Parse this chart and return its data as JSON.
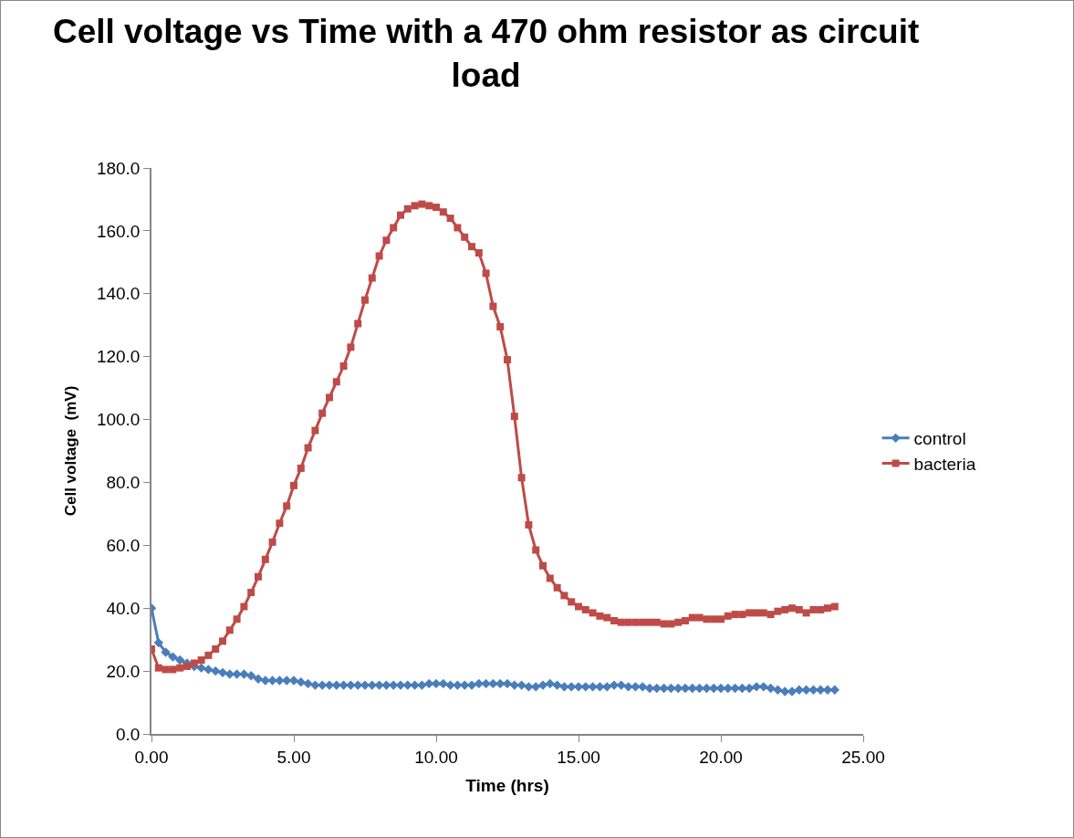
{
  "chart_data": {
    "type": "line",
    "title": "Cell voltage vs Time with a 470 ohm resistor as circuit load",
    "xlabel": "Time (hrs)",
    "ylabel": "Cell voltage  (mV)",
    "x": [
      0,
      0.25,
      0.5,
      0.75,
      1,
      1.25,
      1.5,
      1.75,
      2,
      2.25,
      2.5,
      2.75,
      3,
      3.25,
      3.5,
      3.75,
      4,
      4.25,
      4.5,
      4.75,
      5,
      5.25,
      5.5,
      5.75,
      6,
      6.25,
      6.5,
      6.75,
      7,
      7.25,
      7.5,
      7.75,
      8,
      8.25,
      8.5,
      8.75,
      9,
      9.25,
      9.5,
      9.75,
      10,
      10.25,
      10.5,
      10.75,
      11,
      11.25,
      11.5,
      11.75,
      12,
      12.25,
      12.5,
      12.75,
      13,
      13.25,
      13.5,
      13.75,
      14,
      14.25,
      14.5,
      14.75,
      15,
      15.25,
      15.5,
      15.75,
      16,
      16.25,
      16.5,
      16.75,
      17,
      17.25,
      17.5,
      17.75,
      18,
      18.25,
      18.5,
      18.75,
      19,
      19.25,
      19.5,
      19.75,
      20,
      20.25,
      20.5,
      20.75,
      21,
      21.25,
      21.5,
      21.75,
      22,
      22.25,
      22.5,
      22.75,
      23,
      23.25,
      23.5,
      23.75,
      24
    ],
    "series": [
      {
        "name": "control",
        "color": "#4a7ebb",
        "marker": "diamond",
        "values": [
          40,
          29,
          26,
          24.5,
          23.5,
          22.5,
          21.5,
          21,
          20.5,
          20,
          19.5,
          19,
          19,
          19,
          18.5,
          17.5,
          17,
          17,
          17,
          17,
          17,
          16.5,
          16,
          15.5,
          15.5,
          15.5,
          15.5,
          15.5,
          15.5,
          15.5,
          15.5,
          15.5,
          15.5,
          15.5,
          15.5,
          15.5,
          15.5,
          15.5,
          15.5,
          16,
          16,
          16,
          15.5,
          15.5,
          15.5,
          15.5,
          16,
          16,
          16,
          16,
          16,
          15.5,
          15.5,
          15,
          15,
          15.5,
          16,
          15.5,
          15,
          15,
          15,
          15,
          15,
          15,
          15,
          15.5,
          15.5,
          15,
          15,
          15,
          14.5,
          14.5,
          14.5,
          14.5,
          14.5,
          14.5,
          14.5,
          14.5,
          14.5,
          14.5,
          14.5,
          14.5,
          14.5,
          14.5,
          14.5,
          15,
          15,
          14.5,
          14,
          13.5,
          13.5,
          14,
          14,
          14,
          14,
          14,
          14
        ]
      },
      {
        "name": "bacteria",
        "color": "#be4b48",
        "marker": "square",
        "values": [
          27,
          21,
          20.5,
          20.5,
          21,
          21.5,
          22.5,
          23.5,
          25,
          27,
          29.5,
          33,
          36.5,
          40.5,
          45,
          50,
          55.5,
          61,
          67,
          72.5,
          79,
          84.5,
          91,
          96.5,
          102,
          107,
          112,
          117,
          123,
          130.5,
          138,
          145,
          152,
          157,
          161,
          165,
          167,
          168,
          168.5,
          168,
          167.5,
          166,
          164,
          161,
          158,
          155,
          153,
          146.5,
          136,
          129.5,
          119,
          101,
          81.5,
          66.5,
          58.5,
          53.5,
          49.5,
          46.5,
          44,
          42,
          40.5,
          39.5,
          38.5,
          37.5,
          37,
          36,
          35.5,
          35.5,
          35.5,
          35.5,
          35.5,
          35.5,
          35,
          35,
          35.5,
          36,
          37,
          37,
          36.5,
          36.5,
          36.5,
          37.5,
          38,
          38,
          38.5,
          38.5,
          38.5,
          38,
          39,
          39.5,
          40,
          39.5,
          38.5,
          39.5,
          39.5,
          40,
          40.5
        ]
      }
    ],
    "xlim": [
      0,
      25
    ],
    "xticks": [
      {
        "value": 0,
        "label": "0.00"
      },
      {
        "value": 5,
        "label": "5.00"
      },
      {
        "value": 10,
        "label": "10.00"
      },
      {
        "value": 15,
        "label": "15.00"
      },
      {
        "value": 20,
        "label": "20.00"
      },
      {
        "value": 25,
        "label": "25.00"
      }
    ],
    "ylim": [
      0,
      180
    ],
    "yticks": [
      {
        "value": 0,
        "label": "0.0"
      },
      {
        "value": 20,
        "label": "20.0"
      },
      {
        "value": 40,
        "label": "40.0"
      },
      {
        "value": 60,
        "label": "60.0"
      },
      {
        "value": 80,
        "label": "80.0"
      },
      {
        "value": 100,
        "label": "100.0"
      },
      {
        "value": 120,
        "label": "120.0"
      },
      {
        "value": 140,
        "label": "140.0"
      },
      {
        "value": 160,
        "label": "160.0"
      },
      {
        "value": 180,
        "label": "180.0"
      }
    ],
    "grid": false,
    "legend": "right",
    "line_style": "solid"
  }
}
